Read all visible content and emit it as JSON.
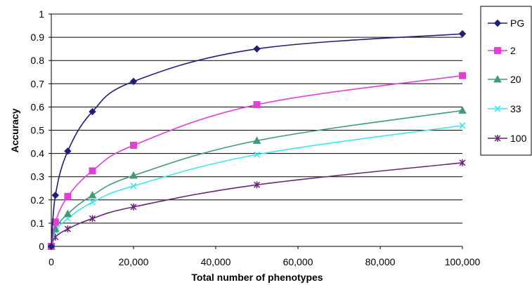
{
  "chart_data": {
    "type": "line",
    "xlabel": "Total number of phenotypes",
    "ylabel": "Accuracy",
    "xlim": [
      0,
      100000
    ],
    "ylim": [
      0,
      1
    ],
    "x_ticks": [
      0,
      20000,
      40000,
      60000,
      80000,
      100000
    ],
    "x_tick_labels": [
      "0",
      "20,000",
      "40,000",
      "60,000",
      "80,000",
      "100,000"
    ],
    "y_ticks": [
      0,
      0.1,
      0.2,
      0.3,
      0.4,
      0.5,
      0.6,
      0.7,
      0.8,
      0.9,
      1
    ],
    "y_tick_labels": [
      "0",
      "0.1",
      "0.2",
      "0.3",
      "0.4",
      "0.5",
      "0.6",
      "0.7",
      "0.8",
      "0.9",
      "1"
    ],
    "grid": "horizontal",
    "legend_position": "right",
    "x": [
      0,
      1000,
      4000,
      10000,
      20000,
      50000,
      100000
    ],
    "series": [
      {
        "name": "PG",
        "color": "#1f1f7a",
        "marker": "diamond",
        "values": [
          0,
          0.22,
          0.41,
          0.58,
          0.71,
          0.85,
          0.915
        ]
      },
      {
        "name": "2",
        "color": "#e23fd6",
        "marker": "square",
        "values": [
          0,
          0.105,
          0.215,
          0.325,
          0.435,
          0.61,
          0.735
        ]
      },
      {
        "name": "20",
        "color": "#3f9a78",
        "marker": "triangle",
        "values": [
          0,
          0.075,
          0.14,
          0.22,
          0.305,
          0.455,
          0.585
        ]
      },
      {
        "name": "33",
        "color": "#3fe6f0",
        "marker": "x",
        "values": [
          0,
          0.065,
          0.12,
          0.19,
          0.26,
          0.395,
          0.52
        ]
      },
      {
        "name": "100",
        "color": "#6a2476",
        "marker": "star",
        "values": [
          0,
          0.04,
          0.075,
          0.12,
          0.17,
          0.265,
          0.36
        ]
      }
    ]
  }
}
